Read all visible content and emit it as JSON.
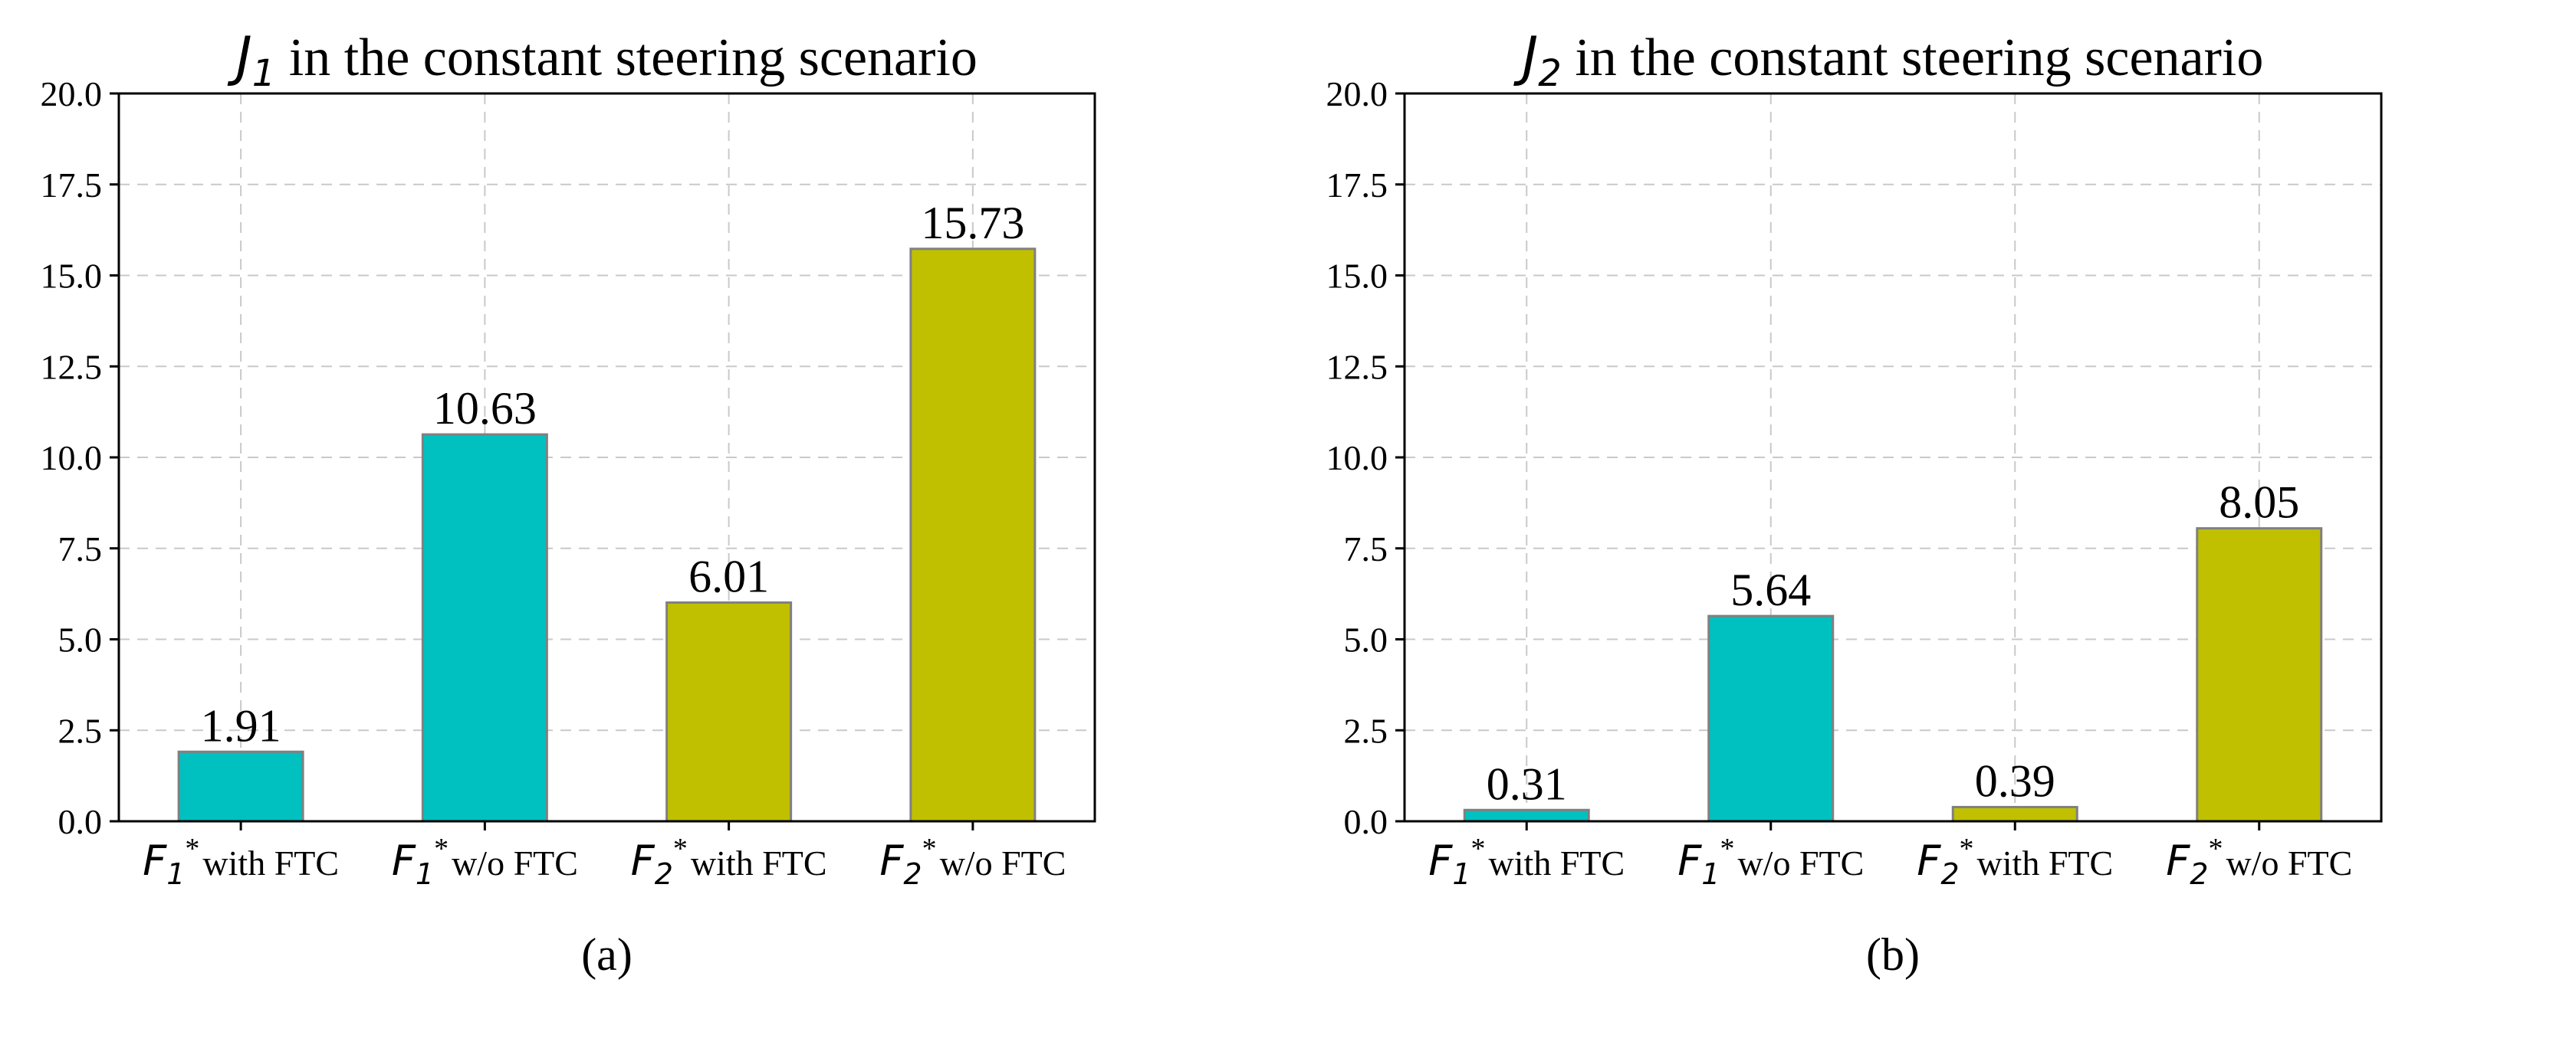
{
  "colors": {
    "teal": "#00c0c0",
    "olive": "#c0c000",
    "bar_edge": "#808080",
    "grid": "#c9c9c9"
  },
  "chart_data": [
    {
      "type": "bar",
      "panel_label": "(a)",
      "title": {
        "math": "J",
        "subscript": "1",
        "text": " in the constant steering scenario"
      },
      "categories": [
        {
          "math": "F",
          "subscript": "1",
          "superscript": "*",
          "text": "with FTC"
        },
        {
          "math": "F",
          "subscript": "1",
          "superscript": "*",
          "text": "w/o FTC"
        },
        {
          "math": "F",
          "subscript": "2",
          "superscript": "*",
          "text": "with FTC"
        },
        {
          "math": "F",
          "subscript": "2",
          "superscript": "*",
          "text": "w/o FTC"
        }
      ],
      "values": [
        1.91,
        10.63,
        6.01,
        15.73
      ],
      "value_labels": [
        "1.91",
        "10.63",
        "6.01",
        "15.73"
      ],
      "bar_colors": [
        "teal",
        "teal",
        "olive",
        "olive"
      ],
      "ylim": [
        0,
        20
      ],
      "yticks": [
        "0.0",
        "2.5",
        "5.0",
        "7.5",
        "10.0",
        "12.5",
        "15.0",
        "17.5",
        "20.0"
      ],
      "grid": true
    },
    {
      "type": "bar",
      "panel_label": "(b)",
      "title": {
        "math": "J",
        "subscript": "2",
        "text": " in the constant steering scenario"
      },
      "categories": [
        {
          "math": "F",
          "subscript": "1",
          "superscript": "*",
          "text": "with FTC"
        },
        {
          "math": "F",
          "subscript": "1",
          "superscript": "*",
          "text": "w/o FTC"
        },
        {
          "math": "F",
          "subscript": "2",
          "superscript": "*",
          "text": "with FTC"
        },
        {
          "math": "F",
          "subscript": "2",
          "superscript": "*",
          "text": "w/o FTC"
        }
      ],
      "values": [
        0.31,
        5.64,
        0.39,
        8.05
      ],
      "value_labels": [
        "0.31",
        "5.64",
        "0.39",
        "8.05"
      ],
      "bar_colors": [
        "teal",
        "teal",
        "olive",
        "olive"
      ],
      "ylim": [
        0,
        20
      ],
      "yticks": [
        "0.0",
        "2.5",
        "5.0",
        "7.5",
        "10.0",
        "12.5",
        "15.0",
        "17.5",
        "20.0"
      ],
      "grid": true
    }
  ]
}
